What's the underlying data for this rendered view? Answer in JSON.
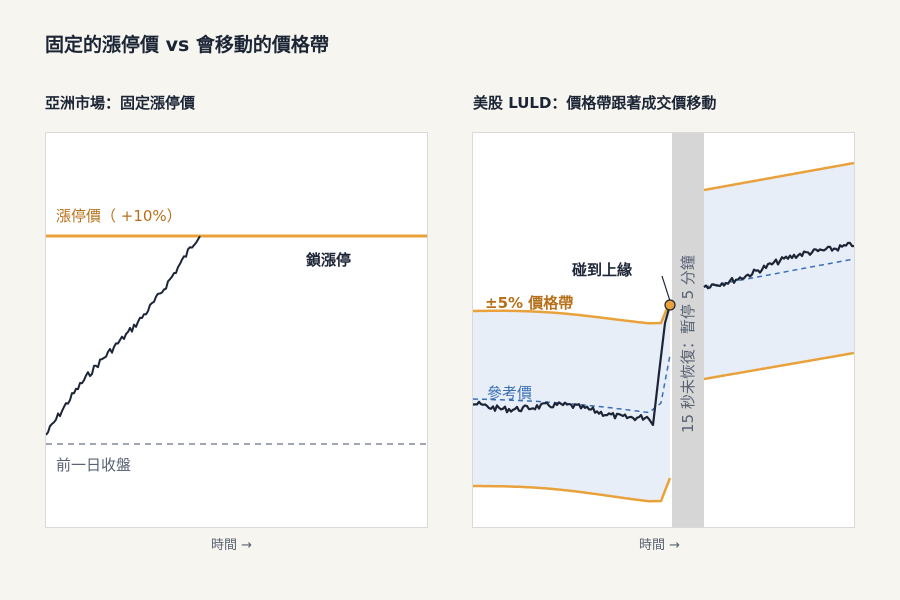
{
  "title": "固定的漲停價 vs 會移動的價格帶",
  "colors": {
    "background": "#f7f5ef",
    "band": "#e9a23b",
    "price": "#1c2536",
    "reference": "#3a6fb7",
    "band_fill": "#e8eef7",
    "halt": "#d6d6d6",
    "band_label": "#b7701a"
  },
  "left_panel": {
    "subtitle": "亞洲市場：固定漲停價",
    "limit_label": "漲停價（ +10%）",
    "lock_label": "鎖漲停",
    "prev_close_label": "前一日收盤",
    "x_axis": "時間 →"
  },
  "right_panel": {
    "subtitle": "美股 LULD：價格帶跟著成交價移動",
    "band_label": "±5% 價格帶",
    "touch_label": "碰到上緣",
    "ref_label": "參考價",
    "halt_label": "15 秒未恢復：暫停 5 分鐘",
    "x_axis": "時間 →"
  }
}
